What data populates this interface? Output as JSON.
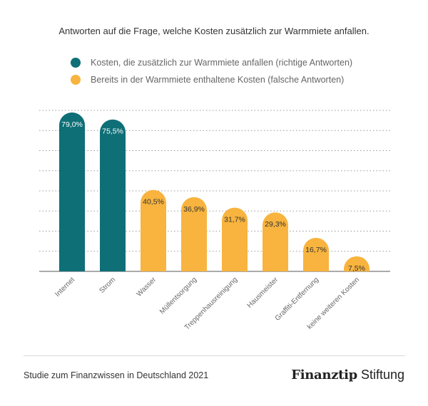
{
  "colors": {
    "correct": "#0e6f77",
    "wrong": "#f8b43e",
    "grid": "#9a9a9a",
    "axis": "#555555",
    "tick_text": "#666666",
    "label_text": "#333333"
  },
  "legend": [
    {
      "label": "Kosten, die zusätzlich zur Warmmiete anfallen (richtige Antworten)",
      "color": "#0e6f77"
    },
    {
      "label": "Bereits in der Warmmiete enthaltene Kosten (falsche Antworten)",
      "color": "#f8b43e"
    }
  ],
  "footer": {
    "source": "Studie zum Finanzwissen in Deutschland 2021",
    "brand_main": "Finanztip",
    "brand_sub": "Stiftung"
  },
  "chart_data": {
    "type": "bar",
    "title": "Antworten auf die Frage, welche Kosten zusätzlich zur Warmmiete anfallen.",
    "categories": [
      "Internet",
      "Strom",
      "Wasser",
      "Müllentsorgung",
      "Treppenhausreinigung",
      "Hausmeister",
      "Graffiti-Entfernung",
      "keine weiteren Kosten"
    ],
    "values": [
      79.0,
      75.5,
      40.5,
      36.9,
      31.7,
      29.3,
      16.7,
      7.5
    ],
    "value_labels": [
      "79,0%",
      "75,5%",
      "40,5%",
      "36,9%",
      "31,7%",
      "29,3%",
      "16,7%",
      "7,5%"
    ],
    "groups": [
      "correct",
      "correct",
      "wrong",
      "wrong",
      "wrong",
      "wrong",
      "wrong",
      "wrong"
    ],
    "series": [
      {
        "name": "Kosten, die zusätzlich zur Warmmiete anfallen (richtige Antworten)",
        "color": "#0e6f77"
      },
      {
        "name": "Bereits in der Warmmiete enthaltene Kosten (falsche Antworten)",
        "color": "#f8b43e"
      }
    ],
    "ylim": [
      0,
      80
    ],
    "grid": true,
    "legend_position": "top-left",
    "xlabel": "",
    "ylabel": ""
  }
}
